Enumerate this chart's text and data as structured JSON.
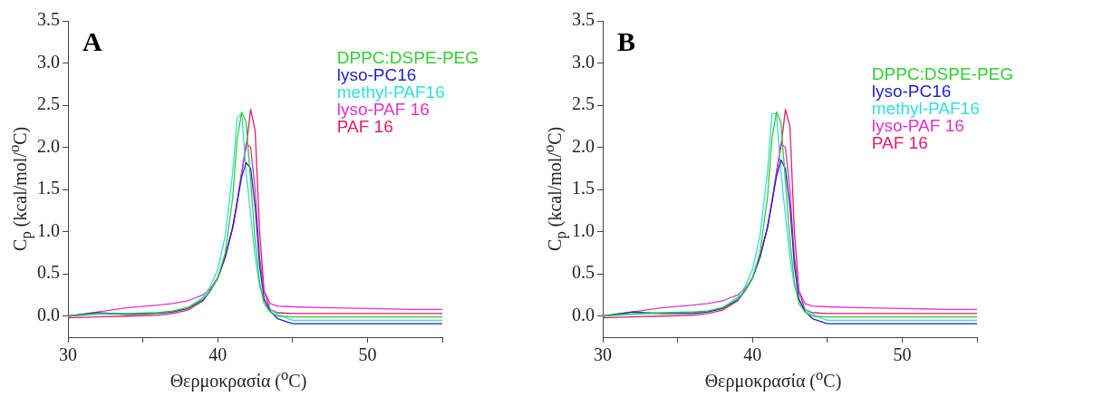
{
  "chart_data": [
    {
      "type": "line",
      "title": "A",
      "xlabel": "Θερμοκρασία ($^{o}$C)",
      "ylabel": "C$_{p}$ (kcal/mol/$^{o}$C)",
      "legend": "top right",
      "grid": false,
      "marker": "none",
      "line_style": "solid",
      "xlim": [
        30,
        55
      ],
      "xticks": [
        30,
        {
          "value": 35,
          "label": null
        },
        40,
        {
          "value": 45,
          "label": null
        },
        50,
        {
          "value": 55,
          "label": null
        }
      ],
      "ylim": [
        -0.25,
        3.5
      ],
      "yticks": [
        {
          "value": 0,
          "label": "0.0"
        },
        0.5,
        {
          "value": 1,
          "label": "1.0"
        },
        1.5,
        {
          "value": 2,
          "label": "2.0"
        },
        2.5,
        {
          "value": 3,
          "label": "3.0"
        },
        3.5
      ],
      "x": [
        30,
        32,
        34,
        36,
        37,
        38,
        39,
        39.5,
        40,
        40.5,
        41,
        41.3,
        41.6,
        41.9,
        42.2,
        42.5,
        42.8,
        43.1,
        43.5,
        44,
        45,
        47,
        50,
        53,
        55
      ],
      "series": [
        {
          "name": "DPPC:DSPE-PEG",
          "color": "#33cc33",
          "values": [
            0,
            0.03,
            0.03,
            0.04,
            0.06,
            0.1,
            0.2,
            0.3,
            0.45,
            0.75,
            1.4,
            2.1,
            2.42,
            2.3,
            1.6,
            0.9,
            0.4,
            0.15,
            0.05,
            0,
            -0.01,
            -0.01,
            -0.01,
            -0.01,
            -0.01
          ]
        },
        {
          "name": "lyso-PC16",
          "color": "#2222cc",
          "values": [
            0,
            0.04,
            0.02,
            0.03,
            0.05,
            0.09,
            0.19,
            0.3,
            0.45,
            0.7,
            1.05,
            1.35,
            1.65,
            1.82,
            1.75,
            1.3,
            0.6,
            0.2,
            0.06,
            -0.03,
            -0.09,
            -0.09,
            -0.09,
            -0.09,
            -0.09
          ]
        },
        {
          "name": "methyl-PAF16",
          "color": "#33dddd",
          "values": [
            0,
            0.02,
            0.03,
            0.04,
            0.06,
            0.1,
            0.22,
            0.35,
            0.55,
            0.95,
            1.7,
            2.35,
            2.4,
            1.7,
            1.2,
            0.7,
            0.35,
            0.2,
            0.08,
            0.02,
            -0.05,
            -0.05,
            -0.05,
            -0.05,
            -0.05
          ]
        },
        {
          "name": "lyso-PAF 16",
          "color": "#dd33cc",
          "values": [
            0,
            0.05,
            0.1,
            0.13,
            0.15,
            0.18,
            0.25,
            0.32,
            0.45,
            0.7,
            1.05,
            1.35,
            1.7,
            2.05,
            2.0,
            1.5,
            0.7,
            0.3,
            0.15,
            0.12,
            0.11,
            0.1,
            0.09,
            0.08,
            0.08
          ]
        },
        {
          "name": "PAF 16",
          "color": "#e0206a",
          "values": [
            -0.02,
            -0.01,
            0,
            0.01,
            0.03,
            0.07,
            0.18,
            0.3,
            0.45,
            0.7,
            1.05,
            1.35,
            1.7,
            2.0,
            2.45,
            2.2,
            1.0,
            0.3,
            0.08,
            0.04,
            0.03,
            0.03,
            0.03,
            0.03,
            0.03
          ]
        }
      ]
    },
    {
      "type": "line",
      "title": "B",
      "xlabel": "Θερμοκρασία ($^{o}$C)",
      "ylabel": "C$_{p}$ (kcal/mol/$^{o}$C)",
      "legend": "top right",
      "grid": false,
      "marker": "none",
      "line_style": "solid",
      "xlim": [
        30,
        55
      ],
      "xticks": [
        30,
        {
          "value": 35,
          "label": null
        },
        40,
        {
          "value": 45,
          "label": null
        },
        50,
        {
          "value": 55,
          "label": null
        }
      ],
      "ylim": [
        -0.25,
        3.5
      ],
      "yticks": [
        {
          "value": 0,
          "label": "0.0"
        },
        0.5,
        {
          "value": 1,
          "label": "1.0"
        },
        1.5,
        {
          "value": 2,
          "label": "2.0"
        },
        2.5,
        {
          "value": 3,
          "label": "3.0"
        },
        3.5
      ],
      "x": [
        30,
        32,
        34,
        36,
        37,
        38,
        39,
        39.5,
        40,
        40.5,
        41,
        41.3,
        41.6,
        41.9,
        42.2,
        42.5,
        42.8,
        43.1,
        43.5,
        44,
        45,
        47,
        50,
        53,
        55
      ],
      "series": [
        {
          "name": "DPPC:DSPE-PEG",
          "color": "#33cc33",
          "values": [
            0,
            0.03,
            0.04,
            0.05,
            0.06,
            0.1,
            0.2,
            0.3,
            0.45,
            0.75,
            1.4,
            2.1,
            2.42,
            2.3,
            1.6,
            0.9,
            0.4,
            0.15,
            0.05,
            0,
            -0.01,
            -0.01,
            -0.01,
            -0.01,
            -0.01
          ]
        },
        {
          "name": "lyso-PC16",
          "color": "#2222cc",
          "values": [
            0,
            0.05,
            0.03,
            0.03,
            0.05,
            0.09,
            0.19,
            0.3,
            0.45,
            0.7,
            1.05,
            1.35,
            1.65,
            1.85,
            1.75,
            1.3,
            0.6,
            0.2,
            0.06,
            -0.03,
            -0.09,
            -0.09,
            -0.09,
            -0.09,
            -0.09
          ]
        },
        {
          "name": "methyl-PAF16",
          "color": "#33dddd",
          "values": [
            0,
            0.02,
            0.03,
            0.04,
            0.06,
            0.1,
            0.22,
            0.35,
            0.55,
            0.95,
            1.7,
            2.4,
            2.4,
            1.7,
            1.2,
            0.7,
            0.35,
            0.2,
            0.08,
            0.02,
            -0.05,
            -0.05,
            -0.05,
            -0.05,
            -0.05
          ]
        },
        {
          "name": "lyso-PAF 16",
          "color": "#dd33cc",
          "values": [
            0,
            0.05,
            0.1,
            0.13,
            0.15,
            0.18,
            0.25,
            0.32,
            0.45,
            0.7,
            1.05,
            1.35,
            1.7,
            2.05,
            2.0,
            1.5,
            0.7,
            0.3,
            0.15,
            0.12,
            0.11,
            0.1,
            0.09,
            0.08,
            0.08
          ]
        },
        {
          "name": "PAF 16",
          "color": "#e0206a",
          "values": [
            -0.02,
            -0.01,
            0,
            0.01,
            0.03,
            0.07,
            0.18,
            0.3,
            0.45,
            0.7,
            1.05,
            1.35,
            1.7,
            2.0,
            2.45,
            2.25,
            1.0,
            0.3,
            0.08,
            0.04,
            0.03,
            0.03,
            0.03,
            0.03,
            0.03
          ]
        }
      ]
    }
  ]
}
